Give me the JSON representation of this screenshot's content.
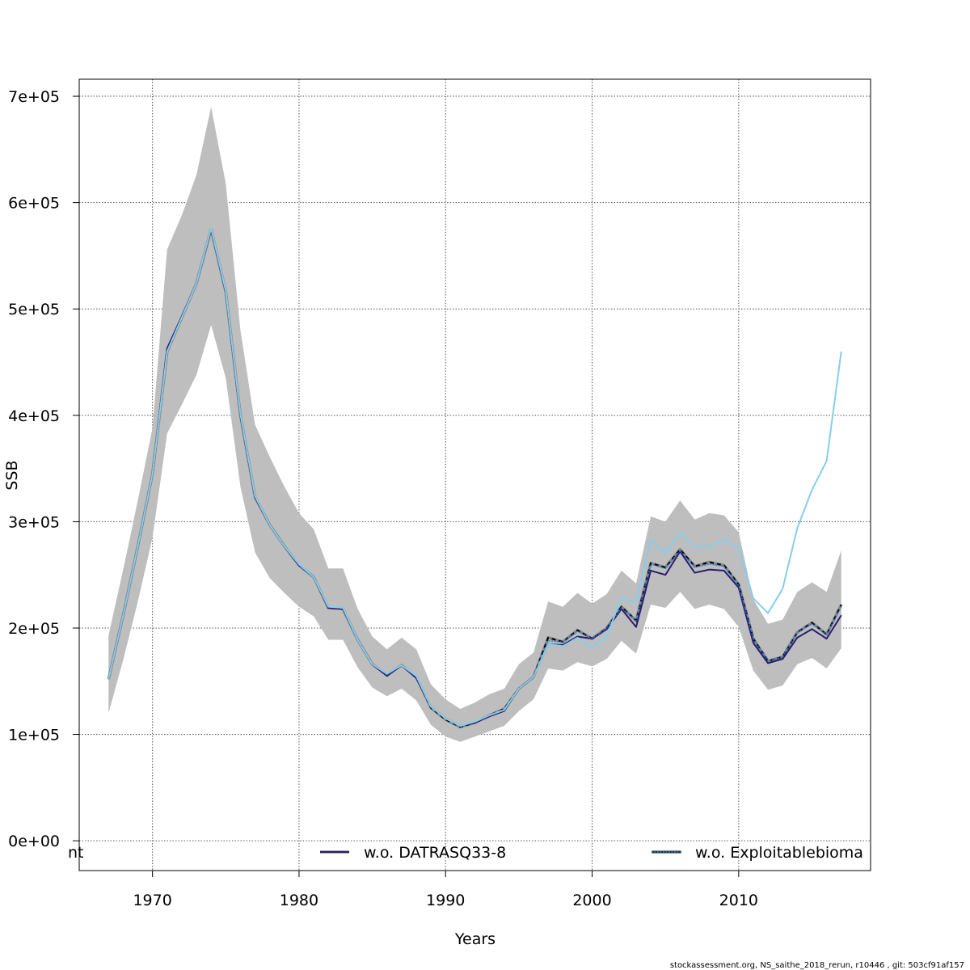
{
  "chart_data": {
    "type": "line",
    "xlabel": "Years",
    "ylabel": "SSB",
    "xlim": [
      1965,
      2019
    ],
    "ylim": [
      -28000,
      716000
    ],
    "x_ticks": [
      1970,
      1980,
      1990,
      2000,
      2010
    ],
    "x_tick_labels": [
      "1970",
      "1980",
      "1990",
      "2000",
      "2010"
    ],
    "y_ticks": [
      0,
      100000,
      200000,
      300000,
      400000,
      500000,
      600000,
      700000
    ],
    "y_tick_labels": [
      "0e+00",
      "1e+05",
      "2e+05",
      "3e+05",
      "4e+05",
      "5e+05",
      "6e+05",
      "7e+05"
    ],
    "grid": true,
    "x": [
      1967,
      1968,
      1969,
      1970,
      1971,
      1972,
      1973,
      1974,
      1975,
      1976,
      1977,
      1978,
      1979,
      1980,
      1981,
      1982,
      1983,
      1984,
      1985,
      1986,
      1987,
      1988,
      1989,
      1990,
      1991,
      1992,
      1993,
      1994,
      1995,
      1996,
      1997,
      1998,
      1999,
      2000,
      2001,
      2002,
      2003,
      2004,
      2005,
      2006,
      2007,
      2008,
      2009,
      2010,
      2011,
      2012,
      2013,
      2014,
      2015,
      2016,
      2017
    ],
    "confidence_band": {
      "color": "#bebebe",
      "lower": [
        120000,
        170000,
        225000,
        285000,
        383000,
        410000,
        438000,
        485000,
        435000,
        333000,
        271000,
        247000,
        233000,
        220000,
        211000,
        189000,
        189000,
        163000,
        144000,
        136000,
        143000,
        132000,
        109000,
        98000,
        93000,
        98000,
        103000,
        108000,
        122000,
        133000,
        162000,
        160000,
        168000,
        164000,
        171000,
        188000,
        176000,
        222000,
        219000,
        234000,
        218000,
        222000,
        218000,
        201000,
        160000,
        142000,
        146000,
        166000,
        172000,
        162000,
        181000
      ],
      "upper": [
        193000,
        255000,
        320000,
        388000,
        556000,
        588000,
        626000,
        690000,
        618000,
        480000,
        391000,
        361000,
        333000,
        308000,
        293000,
        256000,
        256000,
        218000,
        192000,
        180000,
        191000,
        180000,
        147000,
        133000,
        124000,
        130000,
        138000,
        143000,
        166000,
        177000,
        225000,
        220000,
        233000,
        223000,
        232000,
        254000,
        242000,
        305000,
        300000,
        320000,
        302000,
        308000,
        306000,
        290000,
        227000,
        204000,
        208000,
        234000,
        243000,
        234000,
        273000
      ]
    },
    "series": [
      {
        "name": "",
        "color": "#000000",
        "dash": "dashed-on-gray",
        "values": [
          152000,
          212000,
          277000,
          345000,
          460000,
          492000,
          524000,
          575000,
          516000,
          400000,
          323000,
          297000,
          277000,
          259000,
          248000,
          219000,
          218000,
          189000,
          166000,
          156000,
          165000,
          154000,
          125000,
          114000,
          107000,
          111000,
          118000,
          124000,
          143000,
          154000,
          191000,
          187000,
          198000,
          190000,
          200000,
          220000,
          207000,
          261000,
          257000,
          274000,
          258000,
          262000,
          259000,
          241000,
          190000,
          169000,
          173000,
          196000,
          205000,
          194000,
          222000
        ]
      },
      {
        "name": "w.o. DATRASQ33-8",
        "color": "#2c1d6e",
        "dash": "solid",
        "values": [
          152000,
          212000,
          277000,
          345000,
          463000,
          493000,
          524000,
          575000,
          516000,
          400000,
          323000,
          297000,
          277000,
          259000,
          248000,
          219000,
          218000,
          189000,
          166000,
          155000,
          165000,
          153000,
          126000,
          115000,
          108000,
          111000,
          117000,
          122000,
          143000,
          154000,
          185000,
          184000,
          192000,
          190000,
          199000,
          218000,
          201000,
          254000,
          250000,
          272000,
          252000,
          255000,
          254000,
          238000,
          186000,
          167000,
          171000,
          191000,
          199000,
          190000,
          212000
        ]
      },
      {
        "name": "w.o. Exploitablebioma",
        "color": "#1f7fe0",
        "dash": "dotted",
        "values": [
          152000,
          212000,
          277000,
          345000,
          460000,
          492000,
          523000,
          576000,
          518000,
          402000,
          325000,
          297000,
          277000,
          259000,
          247000,
          220000,
          219000,
          190000,
          166000,
          156000,
          165000,
          154000,
          126000,
          115000,
          107000,
          112000,
          118000,
          124000,
          143000,
          154000,
          188000,
          187000,
          197000,
          190000,
          200000,
          219000,
          207000,
          260000,
          256000,
          273000,
          257000,
          260000,
          258000,
          240000,
          190000,
          169000,
          173000,
          196000,
          204000,
          194000,
          220000
        ]
      },
      {
        "name": "",
        "color": "#87ceeb",
        "dash": "solid",
        "values": [
          152000,
          212000,
          277000,
          345000,
          460000,
          492000,
          524000,
          576000,
          517000,
          401000,
          324000,
          297000,
          277000,
          260000,
          248000,
          220000,
          219000,
          189000,
          166000,
          157000,
          165000,
          155000,
          126000,
          115000,
          108000,
          112000,
          118000,
          123000,
          143000,
          154000,
          185000,
          183000,
          191000,
          182000,
          192000,
          229000,
          224000,
          283000,
          270000,
          290000,
          276000,
          277000,
          283000,
          275000,
          228000,
          214000,
          237000,
          294000,
          330000,
          357000,
          460000
        ]
      }
    ],
    "legend": {
      "placement": "bottom",
      "entries": [
        {
          "label": "nt",
          "partial": true
        },
        {
          "label": "w.o. DATRASQ33-8",
          "series": 1
        },
        {
          "label": "w.o. Exploitablebioma",
          "series": 2
        }
      ]
    }
  },
  "footer": "stockassessment.org, NS_saithe_2018_rerun, r10446 , git: 503cf91af157"
}
